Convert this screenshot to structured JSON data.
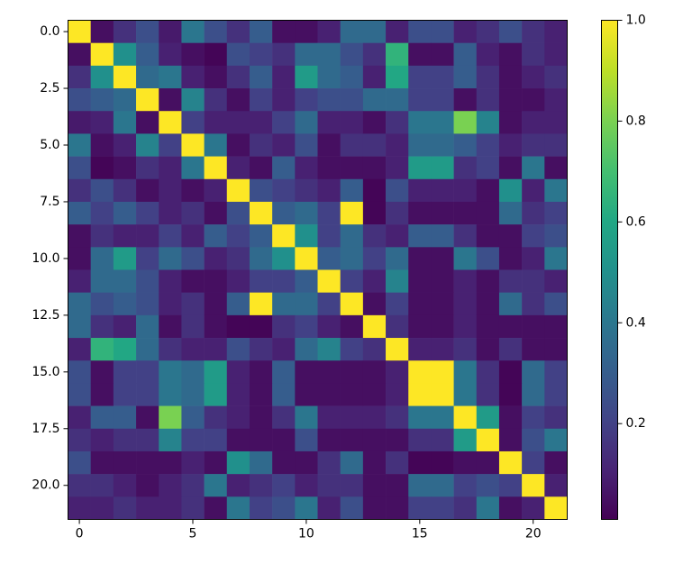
{
  "chart_data": {
    "type": "heatmap",
    "colormap": "viridis",
    "clim": [
      0.01,
      1
    ],
    "xlim": [
      -0.5,
      21.5
    ],
    "ylim": [
      21.5,
      -0.5
    ],
    "xticks": [
      0,
      5,
      10,
      15,
      20
    ],
    "yticks": [
      {
        "value": 0,
        "label": "0.0"
      },
      2.5,
      {
        "value": 5,
        "label": "5.0"
      },
      7.5,
      {
        "value": 10,
        "label": "10.0"
      },
      12.5,
      {
        "value": 15,
        "label": "15.0"
      },
      17.5,
      {
        "value": 20,
        "label": "20.0"
      }
    ],
    "colorbar_ticks": [
      0.2,
      0.4,
      0.6,
      0.8,
      {
        "value": 1,
        "label": "1.0"
      }
    ],
    "z": [
      [
        1,
        0.05,
        0.15,
        0.25,
        0.08,
        0.4,
        0.25,
        0.15,
        0.3,
        0.05,
        0.05,
        0.1,
        0.35,
        0.35,
        0.1,
        0.25,
        0.25,
        0.1,
        0.15,
        0.25,
        0.15,
        0.1
      ],
      [
        0.05,
        1,
        0.5,
        0.3,
        0.1,
        0.05,
        0.02,
        0.25,
        0.2,
        0.15,
        0.35,
        0.35,
        0.25,
        0.15,
        0.65,
        0.05,
        0.05,
        0.3,
        0.1,
        0.05,
        0.15,
        0.1
      ],
      [
        0.15,
        0.5,
        1,
        0.35,
        0.4,
        0.1,
        0.05,
        0.15,
        0.3,
        0.1,
        0.55,
        0.35,
        0.3,
        0.1,
        0.6,
        0.2,
        0.2,
        0.3,
        0.15,
        0.05,
        0.1,
        0.15
      ],
      [
        0.25,
        0.3,
        0.35,
        1,
        0.05,
        0.45,
        0.15,
        0.05,
        0.2,
        0.1,
        0.2,
        0.25,
        0.25,
        0.35,
        0.35,
        0.2,
        0.2,
        0.05,
        0.15,
        0.05,
        0.05,
        0.1
      ],
      [
        0.08,
        0.1,
        0.4,
        0.05,
        1,
        0.2,
        0.1,
        0.1,
        0.1,
        0.2,
        0.35,
        0.1,
        0.1,
        0.05,
        0.15,
        0.4,
        0.4,
        0.8,
        0.45,
        0.05,
        0.1,
        0.1
      ],
      [
        0.4,
        0.05,
        0.1,
        0.45,
        0.2,
        1,
        0.4,
        0.05,
        0.15,
        0.1,
        0.25,
        0.05,
        0.15,
        0.15,
        0.1,
        0.35,
        0.35,
        0.3,
        0.2,
        0.1,
        0.15,
        0.15
      ],
      [
        0.25,
        0.02,
        0.05,
        0.15,
        0.1,
        0.4,
        1,
        0.1,
        0.05,
        0.3,
        0.1,
        0.05,
        0.05,
        0.05,
        0.1,
        0.55,
        0.55,
        0.15,
        0.2,
        0.05,
        0.4,
        0.05
      ],
      [
        0.15,
        0.25,
        0.15,
        0.05,
        0.1,
        0.05,
        0.1,
        1,
        0.25,
        0.2,
        0.15,
        0.1,
        0.3,
        0.02,
        0.25,
        0.1,
        0.1,
        0.1,
        0.05,
        0.5,
        0.1,
        0.4
      ],
      [
        0.3,
        0.2,
        0.3,
        0.2,
        0.1,
        0.15,
        0.05,
        0.25,
        1,
        0.3,
        0.35,
        0.2,
        1,
        0.02,
        0.15,
        0.05,
        0.05,
        0.05,
        0.05,
        0.35,
        0.15,
        0.2
      ],
      [
        0.05,
        0.15,
        0.1,
        0.1,
        0.2,
        0.1,
        0.3,
        0.2,
        0.3,
        1,
        0.5,
        0.2,
        0.35,
        0.15,
        0.1,
        0.3,
        0.3,
        0.15,
        0.05,
        0.05,
        0.2,
        0.25
      ],
      [
        0.05,
        0.35,
        0.55,
        0.2,
        0.35,
        0.25,
        0.1,
        0.15,
        0.35,
        0.5,
        1,
        0.3,
        0.35,
        0.2,
        0.35,
        0.05,
        0.05,
        0.4,
        0.25,
        0.05,
        0.1,
        0.4
      ],
      [
        0.1,
        0.35,
        0.35,
        0.25,
        0.1,
        0.05,
        0.05,
        0.1,
        0.2,
        0.2,
        0.3,
        1,
        0.2,
        0.1,
        0.45,
        0.05,
        0.05,
        0.1,
        0.05,
        0.15,
        0.15,
        0.1
      ],
      [
        0.35,
        0.25,
        0.3,
        0.25,
        0.1,
        0.15,
        0.05,
        0.3,
        1,
        0.35,
        0.35,
        0.2,
        1,
        0.05,
        0.2,
        0.05,
        0.05,
        0.1,
        0.05,
        0.35,
        0.15,
        0.25
      ],
      [
        0.35,
        0.15,
        0.1,
        0.35,
        0.05,
        0.15,
        0.05,
        0.02,
        0.02,
        0.15,
        0.2,
        0.1,
        0.05,
        1,
        0.15,
        0.05,
        0.05,
        0.1,
        0.05,
        0.05,
        0.05,
        0.05
      ],
      [
        0.1,
        0.65,
        0.6,
        0.35,
        0.15,
        0.1,
        0.1,
        0.25,
        0.15,
        0.1,
        0.35,
        0.45,
        0.2,
        0.15,
        1,
        0.1,
        0.1,
        0.15,
        0.05,
        0.15,
        0.05,
        0.05
      ],
      [
        0.25,
        0.05,
        0.2,
        0.2,
        0.4,
        0.35,
        0.55,
        0.1,
        0.05,
        0.3,
        0.05,
        0.05,
        0.05,
        0.05,
        0.1,
        1,
        1,
        0.4,
        0.15,
        0.02,
        0.35,
        0.2
      ],
      [
        0.25,
        0.05,
        0.2,
        0.2,
        0.4,
        0.35,
        0.55,
        0.1,
        0.05,
        0.3,
        0.05,
        0.05,
        0.05,
        0.05,
        0.1,
        1,
        1,
        0.4,
        0.15,
        0.02,
        0.35,
        0.2
      ],
      [
        0.1,
        0.3,
        0.3,
        0.05,
        0.8,
        0.3,
        0.15,
        0.1,
        0.05,
        0.15,
        0.4,
        0.1,
        0.1,
        0.1,
        0.15,
        0.4,
        0.4,
        1,
        0.55,
        0.05,
        0.2,
        0.15
      ],
      [
        0.15,
        0.1,
        0.15,
        0.15,
        0.45,
        0.2,
        0.2,
        0.05,
        0.05,
        0.05,
        0.25,
        0.05,
        0.05,
        0.05,
        0.05,
        0.15,
        0.15,
        0.55,
        1,
        0.05,
        0.25,
        0.4
      ],
      [
        0.25,
        0.05,
        0.05,
        0.05,
        0.05,
        0.1,
        0.05,
        0.5,
        0.35,
        0.05,
        0.05,
        0.15,
        0.35,
        0.05,
        0.15,
        0.02,
        0.02,
        0.05,
        0.05,
        1,
        0.2,
        0.05
      ],
      [
        0.15,
        0.15,
        0.1,
        0.05,
        0.1,
        0.15,
        0.4,
        0.1,
        0.15,
        0.2,
        0.1,
        0.15,
        0.15,
        0.05,
        0.05,
        0.35,
        0.35,
        0.2,
        0.25,
        0.2,
        1,
        0.1
      ],
      [
        0.1,
        0.1,
        0.15,
        0.1,
        0.1,
        0.15,
        0.05,
        0.4,
        0.2,
        0.25,
        0.4,
        0.1,
        0.25,
        0.05,
        0.05,
        0.2,
        0.2,
        0.15,
        0.4,
        0.05,
        0.1,
        1
      ]
    ]
  }
}
